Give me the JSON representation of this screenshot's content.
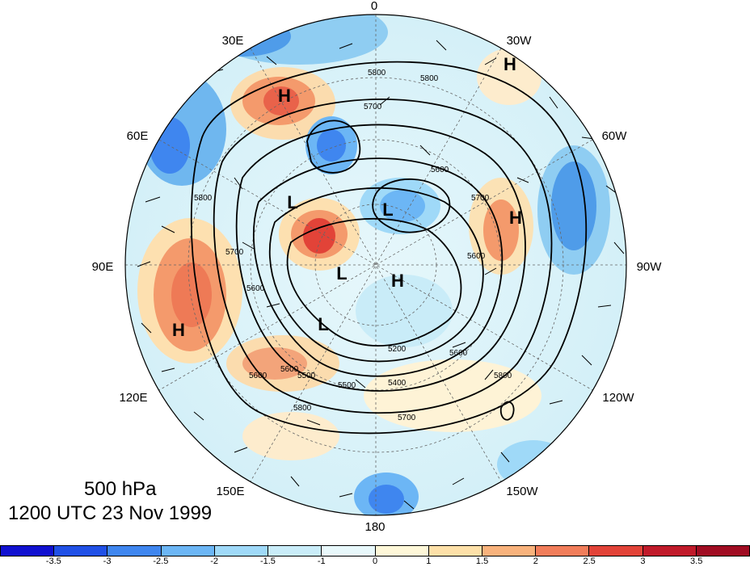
{
  "map": {
    "longitude_labels": [
      "0",
      "30W",
      "60W",
      "90W",
      "120W",
      "150W",
      "180",
      "150E",
      "120E",
      "90E",
      "60E",
      "30E"
    ],
    "pressure_centers": [
      {
        "label": "H",
        "name": "high-north-atlantic"
      },
      {
        "label": "H",
        "name": "high-scandinavia"
      },
      {
        "label": "H",
        "name": "high-greenland-west"
      },
      {
        "label": "H",
        "name": "high-central-asia"
      },
      {
        "label": "H",
        "name": "high-arctic-canada"
      },
      {
        "label": "L",
        "name": "low-siberia"
      },
      {
        "label": "L",
        "name": "low-arctic"
      },
      {
        "label": "L",
        "name": "low-kara"
      },
      {
        "label": "L",
        "name": "low-east-siberia"
      }
    ],
    "contour_labels": [
      "5800",
      "5800",
      "5700",
      "5600",
      "5800",
      "5700",
      "5600",
      "5700",
      "5600",
      "5600",
      "5500",
      "5400",
      "5200",
      "5600",
      "5800",
      "5500",
      "5700",
      "5800",
      "5600"
    ],
    "colors": {
      "strong_negative": "#1a1adc",
      "negative": "#6cc7f0",
      "weak_negative": "#dff6fb",
      "weak_positive": "#fdf0cf",
      "positive": "#f58d62",
      "strong_positive": "#a80f25"
    }
  },
  "title": {
    "level": "500 hPa",
    "date": "1200 UTC 23 Nov 1999"
  },
  "colorbar": {
    "ticks": [
      "-3.5",
      "-3",
      "-2.5",
      "-2",
      "-1.5",
      "-1",
      "0",
      "1",
      "1.5",
      "2",
      "2.5",
      "3",
      "3.5"
    ],
    "colors": [
      "#1010d0",
      "#2050e6",
      "#3f86ef",
      "#6cb6f5",
      "#9fd9f8",
      "#c9ecf8",
      "#e8f8fb",
      "#fef7d8",
      "#fde0a8",
      "#f8b27c",
      "#f17d5a",
      "#e24338",
      "#c01a2a",
      "#a00c22"
    ]
  }
}
